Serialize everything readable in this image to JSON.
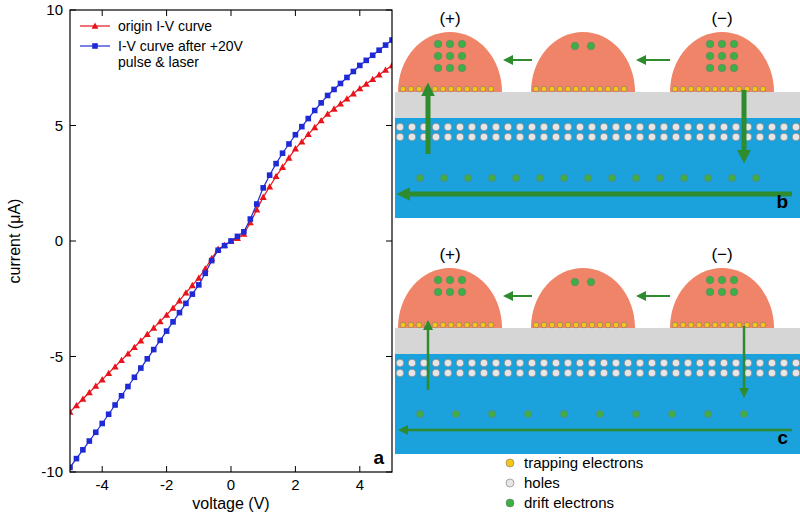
{
  "chart_data": {
    "type": "line",
    "panel_label": "a",
    "x_label": "voltage (V)",
    "y_label": "current (μA)",
    "xlim": [
      -5,
      5
    ],
    "ylim": [
      -10,
      10
    ],
    "xticks": [
      -4,
      -2,
      0,
      2,
      4
    ],
    "yticks": [
      -10,
      -5,
      0,
      5,
      10
    ],
    "legend": "top-left",
    "x": [
      -5.0,
      -4.8,
      -4.6,
      -4.4,
      -4.2,
      -4.0,
      -3.8,
      -3.6,
      -3.4,
      -3.2,
      -3.0,
      -2.8,
      -2.6,
      -2.4,
      -2.2,
      -2.0,
      -1.8,
      -1.6,
      -1.4,
      -1.2,
      -1.0,
      -0.8,
      -0.6,
      -0.4,
      -0.2,
      0,
      0.2,
      0.4,
      0.6,
      0.8,
      1.0,
      1.2,
      1.4,
      1.6,
      1.8,
      2.0,
      2.2,
      2.4,
      2.6,
      2.8,
      3.0,
      3.2,
      3.4,
      3.6,
      3.8,
      4.0,
      4.2,
      4.4,
      4.6,
      4.8,
      5.0
    ],
    "series": [
      {
        "name": "origin I-V curve",
        "color": "#e8131b",
        "marker": "triangle",
        "values": [
          -7.4,
          -7.12,
          -6.84,
          -6.56,
          -6.28,
          -6.0,
          -5.72,
          -5.44,
          -5.16,
          -4.88,
          -4.6,
          -4.32,
          -4.04,
          -3.76,
          -3.48,
          -3.2,
          -2.9,
          -2.58,
          -2.24,
          -1.92,
          -1.6,
          -1.2,
          -0.75,
          -0.35,
          -0.18,
          0,
          0.12,
          0.3,
          0.8,
          1.35,
          1.9,
          2.35,
          2.8,
          3.2,
          3.6,
          4.0,
          4.3,
          4.62,
          4.92,
          5.22,
          5.5,
          5.72,
          5.94,
          6.16,
          6.38,
          6.6,
          6.8,
          7.0,
          7.2,
          7.4,
          7.6
        ]
      },
      {
        "name": "I-V curve after +20V pulse & laser",
        "color": "#1f2ad6",
        "marker": "square",
        "values": [
          -9.8,
          -9.42,
          -9.04,
          -8.66,
          -8.28,
          -7.9,
          -7.5,
          -7.1,
          -6.7,
          -6.3,
          -5.9,
          -5.5,
          -5.1,
          -4.7,
          -4.3,
          -3.9,
          -3.5,
          -3.1,
          -2.7,
          -2.3,
          -1.9,
          -1.4,
          -0.85,
          -0.4,
          -0.2,
          0,
          0.2,
          0.4,
          0.95,
          1.6,
          2.3,
          2.85,
          3.35,
          3.8,
          4.2,
          4.6,
          4.95,
          5.3,
          5.65,
          5.98,
          6.3,
          6.56,
          6.82,
          7.08,
          7.34,
          7.6,
          7.82,
          8.04,
          8.26,
          8.48,
          8.7
        ]
      }
    ]
  },
  "diagrams": [
    {
      "label": "b",
      "electrodes": [
        "(+)",
        "(−)"
      ]
    },
    {
      "label": "c",
      "electrodes": [
        "(+)",
        "(−)"
      ]
    }
  ],
  "key": [
    {
      "label": "trapping electrons",
      "color": "#f5c518"
    },
    {
      "label": "holes",
      "color": "#e6e6e6"
    },
    {
      "label": "drift electrons",
      "color": "#3cb043"
    }
  ]
}
